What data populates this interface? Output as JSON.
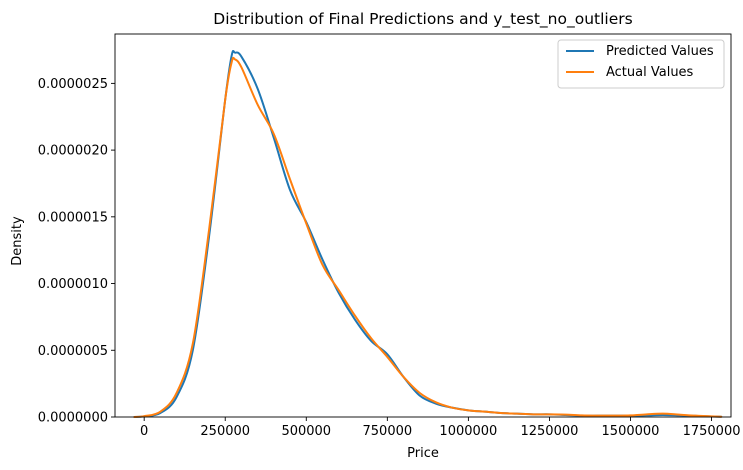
{
  "chart_data": {
    "type": "line",
    "title": "Distribution of Final Predictions and y_test_no_outliers",
    "xlabel": "Price",
    "ylabel": "Density",
    "xlim": [
      -90000,
      1810000
    ],
    "ylim": [
      0,
      2.87e-06
    ],
    "xticks": [
      0,
      250000,
      500000,
      750000,
      1000000,
      1250000,
      1500000,
      1750000
    ],
    "xtick_labels": [
      "0",
      "250000",
      "500000",
      "750000",
      "1000000",
      "1250000",
      "1500000",
      "1750000"
    ],
    "yticks": [
      0,
      5e-07,
      1e-06,
      1.5e-06,
      2e-06,
      2.5e-06
    ],
    "ytick_labels": [
      "0.0000000",
      "0.0000005",
      "0.0000010",
      "0.0000015",
      "0.0000020",
      "0.0000025"
    ],
    "legend_position": "top-right",
    "series": [
      {
        "name": "Predicted Values",
        "color": "#1f77b4",
        "x": [
          -30000,
          0,
          50000,
          100000,
          150000,
          200000,
          250000,
          270000,
          280000,
          300000,
          350000,
          400000,
          450000,
          500000,
          550000,
          600000,
          650000,
          700000,
          750000,
          800000,
          850000,
          900000,
          950000,
          1000000,
          1050000,
          1100000,
          1150000,
          1200000,
          1250000,
          1300000,
          1350000,
          1400000,
          1450000,
          1500000,
          1550000,
          1600000,
          1650000,
          1700000,
          1750000,
          1780000
        ],
        "y": [
          0,
          5e-09,
          3e-08,
          1.5e-07,
          5e-07,
          1.35e-06,
          2.38e-06,
          2.71e-06,
          2.73e-06,
          2.7e-06,
          2.46e-06,
          2.09e-06,
          1.7e-06,
          1.46e-06,
          1.18e-06,
          9.3e-07,
          7.3e-07,
          5.7e-07,
          4.7e-07,
          3e-07,
          1.6e-07,
          1e-07,
          7e-08,
          5e-08,
          4e-08,
          3e-08,
          2.5e-08,
          2e-08,
          2e-08,
          1.5e-08,
          1e-08,
          1e-08,
          1e-08,
          1e-08,
          1.2e-08,
          1.5e-08,
          1.2e-08,
          8e-09,
          4e-09,
          2e-09
        ]
      },
      {
        "name": "Actual Values",
        "color": "#ff7f0e",
        "x": [
          -30000,
          0,
          50000,
          100000,
          150000,
          200000,
          250000,
          270000,
          280000,
          300000,
          350000,
          400000,
          450000,
          500000,
          550000,
          600000,
          650000,
          700000,
          750000,
          800000,
          850000,
          900000,
          950000,
          1000000,
          1050000,
          1100000,
          1150000,
          1200000,
          1250000,
          1300000,
          1350000,
          1400000,
          1450000,
          1500000,
          1550000,
          1600000,
          1650000,
          1700000,
          1750000,
          1780000
        ],
        "y": [
          0,
          6e-09,
          4e-08,
          1.8e-07,
          5.5e-07,
          1.4e-06,
          2.38e-06,
          2.66e-06,
          2.68e-06,
          2.62e-06,
          2.34e-06,
          2.12e-06,
          1.78e-06,
          1.45e-06,
          1.14e-06,
          9.5e-07,
          7.6e-07,
          5.9e-07,
          4.5e-07,
          3e-07,
          1.8e-07,
          1.1e-07,
          7e-08,
          5e-08,
          4e-08,
          3e-08,
          2.5e-08,
          2e-08,
          2e-08,
          1.8e-08,
          1.2e-08,
          1e-08,
          1e-08,
          1.2e-08,
          2e-08,
          2.5e-08,
          1.8e-08,
          1e-08,
          5e-09,
          2e-09
        ]
      }
    ]
  }
}
